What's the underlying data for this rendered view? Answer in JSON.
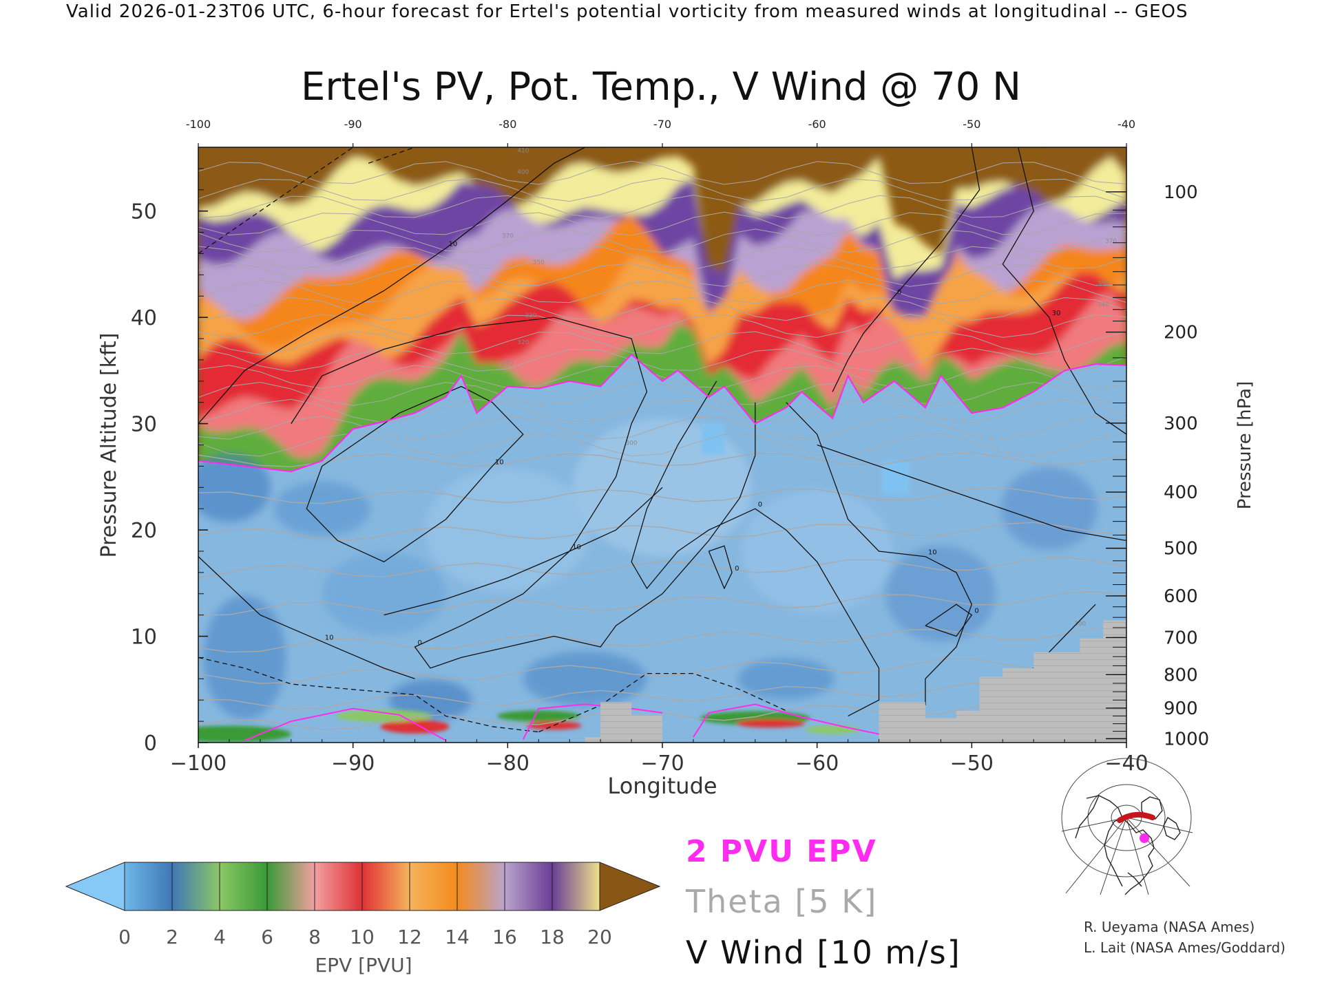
{
  "header": {
    "valid_line": "Valid 2026-01-23T06 UTC, 6-hour forecast for Ertel's potential vorticity from measured winds at longitudinal -- GEOS"
  },
  "chart_data": {
    "type": "heatmap",
    "title": "Ertel's PV, Pot. Temp., V Wind @ 70 N",
    "xlabel": "Longitude",
    "ylabel": "Pressure Altitude [kft]",
    "y2label": "Pressure [hPa]",
    "xlim": [
      -100,
      -40
    ],
    "ylim": [
      0,
      56
    ],
    "x_ticks": [
      -100,
      -90,
      -80,
      -70,
      -60,
      -50,
      -40
    ],
    "x_tick_labels": [
      "−100",
      "−90",
      "−80",
      "−70",
      "−60",
      "−50",
      "−40"
    ],
    "top_tick_labels": [
      "-100",
      "-90",
      "-80",
      "-70",
      "-60",
      "-50",
      "-40"
    ],
    "y_ticks": [
      0,
      10,
      20,
      30,
      40,
      50
    ],
    "y_tick_labels": [
      "0",
      "10",
      "20",
      "30",
      "40",
      "50"
    ],
    "pressure_ticks": [
      {
        "hpa": 1000,
        "label": "1000"
      },
      {
        "hpa": 900,
        "label": "900"
      },
      {
        "hpa": 800,
        "label": "800"
      },
      {
        "hpa": 700,
        "label": "700"
      },
      {
        "hpa": 600,
        "label": "600"
      },
      {
        "hpa": 500,
        "label": "500"
      },
      {
        "hpa": 400,
        "label": "400"
      },
      {
        "hpa": 300,
        "label": "300"
      },
      {
        "hpa": 200,
        "label": "200"
      },
      {
        "hpa": 100,
        "label": "100"
      }
    ],
    "tropopause_kft": [
      [
        -100,
        26.5
      ],
      [
        -97,
        26
      ],
      [
        -94,
        25.5
      ],
      [
        -92,
        26.5
      ],
      [
        -90,
        29.5
      ],
      [
        -88,
        30.2
      ],
      [
        -86,
        31
      ],
      [
        -84,
        32.5
      ],
      [
        -83,
        34.5
      ],
      [
        -82,
        31
      ],
      [
        -80,
        33.5
      ],
      [
        -78,
        33.3
      ],
      [
        -76,
        34
      ],
      [
        -74,
        33.5
      ],
      [
        -72,
        36.5
      ],
      [
        -70,
        34
      ],
      [
        -69,
        35
      ],
      [
        -67,
        32.5
      ],
      [
        -66,
        33.5
      ],
      [
        -64,
        30
      ],
      [
        -62,
        31.5
      ],
      [
        -61,
        33
      ],
      [
        -59,
        30.5
      ],
      [
        -58,
        34.5
      ],
      [
        -57,
        32
      ],
      [
        -55,
        34
      ],
      [
        -53,
        31.5
      ],
      [
        -52,
        34.5
      ],
      [
        -50,
        31
      ],
      [
        -48,
        31.5
      ],
      [
        -46,
        33
      ],
      [
        -44,
        35
      ],
      [
        -42,
        35.6
      ],
      [
        -40,
        35.5
      ]
    ],
    "surface_kft": [
      [
        -100,
        0
      ],
      [
        -75,
        0
      ],
      [
        -75,
        0.5
      ],
      [
        -74,
        0.5
      ],
      [
        -74,
        3.8
      ],
      [
        -72,
        3.8
      ],
      [
        -72,
        2.6
      ],
      [
        -70,
        2.6
      ],
      [
        -70,
        0
      ],
      [
        -56,
        0
      ],
      [
        -56,
        3.8
      ],
      [
        -53,
        3.8
      ],
      [
        -53,
        2.3
      ],
      [
        -51,
        2.3
      ],
      [
        -51,
        3
      ],
      [
        -49.5,
        3
      ],
      [
        -49.5,
        6.2
      ],
      [
        -48,
        6.2
      ],
      [
        -48,
        7
      ],
      [
        -46,
        7
      ],
      [
        -46,
        8.5
      ],
      [
        -43,
        8.5
      ],
      [
        -43,
        9.8
      ],
      [
        -41.5,
        9.8
      ],
      [
        -41.5,
        11.5
      ],
      [
        -40,
        11.5
      ],
      [
        -40,
        0
      ]
    ],
    "v_wind_contours": [
      {
        "label": "10",
        "dashed": false,
        "points": [
          [
            -100,
            30
          ],
          [
            -97,
            35
          ],
          [
            -93,
            38.5
          ],
          [
            -88,
            42.5
          ],
          [
            -84,
            46.5
          ],
          [
            -80,
            51
          ],
          [
            -77,
            54.5
          ],
          [
            -75,
            56
          ]
        ]
      },
      {
        "label": "10",
        "dashed": false,
        "points": [
          [
            -100,
            17.5
          ],
          [
            -96,
            12
          ],
          [
            -92,
            9.5
          ],
          [
            -88,
            7
          ],
          [
            -86,
            6
          ]
        ]
      },
      {
        "label": "0",
        "dashed": false,
        "points": [
          [
            -94,
            30
          ],
          [
            -92,
            34.5
          ],
          [
            -88,
            37
          ],
          [
            -83,
            39
          ],
          [
            -77,
            40
          ],
          [
            -72,
            38
          ],
          [
            -71,
            33
          ],
          [
            -72,
            30
          ],
          [
            -73,
            25
          ],
          [
            -76,
            18
          ],
          [
            -79,
            14
          ],
          [
            -83,
            11
          ],
          [
            -86,
            9
          ],
          [
            -85,
            7
          ],
          [
            -83,
            8
          ],
          [
            -80,
            9
          ],
          [
            -77,
            10
          ],
          [
            -74,
            9
          ],
          [
            -73,
            11
          ],
          [
            -70,
            14
          ],
          [
            -67,
            19
          ],
          [
            -65,
            23
          ],
          [
            -64,
            27
          ],
          [
            -64,
            32
          ]
        ]
      },
      {
        "label": "10",
        "dashed": false,
        "points": [
          [
            -92,
            26
          ],
          [
            -90,
            28
          ],
          [
            -87,
            31
          ],
          [
            -83,
            33.5
          ],
          [
            -81,
            32
          ],
          [
            -79,
            29
          ],
          [
            -81,
            26
          ],
          [
            -84,
            21
          ],
          [
            -88,
            17
          ],
          [
            -91,
            19
          ],
          [
            -93,
            22
          ],
          [
            -92,
            26
          ]
        ]
      },
      {
        "label": "10",
        "dashed": false,
        "points": [
          [
            -88,
            12
          ],
          [
            -84,
            13.5
          ],
          [
            -80,
            15.5
          ],
          [
            -76,
            18
          ],
          [
            -73,
            20
          ],
          [
            -70,
            24
          ]
        ]
      },
      {
        "label": "0",
        "dashed": false,
        "points": [
          [
            -66.5,
            34
          ],
          [
            -69,
            28
          ],
          [
            -71,
            22
          ],
          [
            -72,
            17
          ],
          [
            -71,
            14.5
          ],
          [
            -69,
            18
          ],
          [
            -67,
            20
          ],
          [
            -64,
            22
          ],
          [
            -62,
            20
          ],
          [
            -60,
            17
          ],
          [
            -58,
            12
          ],
          [
            -56,
            7
          ],
          [
            -56,
            4
          ],
          [
            -58,
            2.5
          ]
        ]
      },
      {
        "label": "0",
        "dashed": false,
        "points": [
          [
            -67,
            18
          ],
          [
            -66,
            18.5
          ],
          [
            -65.5,
            16
          ],
          [
            -66,
            14.5
          ],
          [
            -67,
            18
          ]
        ]
      },
      {
        "label": "10",
        "dashed": false,
        "points": [
          [
            -62,
            32
          ],
          [
            -60,
            29
          ],
          [
            -59,
            25
          ],
          [
            -58,
            21
          ],
          [
            -56,
            18
          ],
          [
            -53,
            17.5
          ],
          [
            -51,
            16
          ],
          [
            -50,
            13
          ],
          [
            -51,
            9
          ],
          [
            -53,
            6
          ],
          [
            -53,
            3.5
          ]
        ]
      },
      {
        "label": "0",
        "dashed": false,
        "points": [
          [
            -53,
            11
          ],
          [
            -51,
            13
          ],
          [
            -50,
            12
          ],
          [
            -51,
            10
          ],
          [
            -53,
            11
          ]
        ]
      },
      {
        "label": "0",
        "dashed": false,
        "points": [
          [
            -50,
            56
          ],
          [
            -49.5,
            52
          ],
          [
            -52,
            47
          ],
          [
            -55,
            42
          ],
          [
            -57,
            38.5
          ],
          [
            -58,
            36
          ],
          [
            -59,
            33
          ]
        ]
      },
      {
        "label": "30",
        "dashed": false,
        "points": [
          [
            -47,
            56
          ],
          [
            -46,
            50
          ],
          [
            -48,
            45
          ],
          [
            -45,
            40
          ],
          [
            -44,
            36
          ],
          [
            -42,
            31
          ],
          [
            -40,
            29
          ]
        ]
      },
      {
        "label": "",
        "dashed": false,
        "points": [
          [
            -60,
            28
          ],
          [
            -56,
            26
          ],
          [
            -52,
            24
          ],
          [
            -48,
            22
          ],
          [
            -44,
            20
          ],
          [
            -40,
            19
          ]
        ]
      },
      {
        "label": "",
        "dashed": false,
        "points": [
          [
            -42,
            13
          ],
          [
            -44,
            10
          ],
          [
            -46,
            7
          ],
          [
            -48,
            6
          ]
        ]
      },
      {
        "label": "",
        "dashed": true,
        "points": [
          [
            -100,
            46
          ],
          [
            -96,
            50
          ],
          [
            -92,
            54
          ],
          [
            -90,
            56
          ]
        ]
      },
      {
        "label": "",
        "dashed": true,
        "points": [
          [
            -89,
            54.5
          ],
          [
            -86,
            56
          ]
        ]
      },
      {
        "label": "",
        "dashed": true,
        "points": [
          [
            -100,
            8
          ],
          [
            -97,
            7
          ],
          [
            -94,
            5.5
          ],
          [
            -90,
            5
          ],
          [
            -86,
            4.5
          ],
          [
            -84,
            2.5
          ],
          [
            -81,
            1.5
          ],
          [
            -78,
            1
          ]
        ]
      },
      {
        "label": "",
        "dashed": true,
        "points": [
          [
            -78,
            1
          ],
          [
            -74,
            3.5
          ],
          [
            -71,
            6.5
          ],
          [
            -68,
            6.5
          ],
          [
            -65,
            5
          ],
          [
            -62,
            3
          ]
        ]
      }
    ],
    "theta_isentropes_kft": [
      [
        -100,
        1.5
      ],
      [
        -100,
        3.5
      ],
      [
        -100,
        6
      ],
      [
        -100,
        9
      ],
      [
        -100,
        12.5
      ],
      [
        -100,
        16
      ],
      [
        -100,
        19.5
      ],
      [
        -100,
        23
      ],
      [
        -100,
        26.5
      ]
    ],
    "theta_labels": [
      {
        "text": "300",
        "lon": -72,
        "kft": 28
      },
      {
        "text": "310",
        "lon": -80,
        "kft": 35.5
      },
      {
        "text": "320",
        "lon": -79,
        "kft": 37.5
      },
      {
        "text": "330",
        "lon": -78.5,
        "kft": 40
      },
      {
        "text": "350",
        "lon": -78,
        "kft": 45
      },
      {
        "text": "370",
        "lon": -80,
        "kft": 47.5
      },
      {
        "text": "400",
        "lon": -79,
        "kft": 53.5
      },
      {
        "text": "410",
        "lon": -79,
        "kft": 55.5
      },
      {
        "text": "390",
        "lon": -41,
        "kft": 49
      },
      {
        "text": "370",
        "lon": -41,
        "kft": 47
      },
      {
        "text": "350",
        "lon": -41.5,
        "kft": 43
      },
      {
        "text": "340",
        "lon": -41.5,
        "kft": 41
      },
      {
        "text": "300",
        "lon": -43,
        "kft": 11
      }
    ],
    "colorbar": {
      "label": "EPV [PVU]",
      "tick_labels": [
        "0",
        "2",
        "4",
        "6",
        "8",
        "10",
        "12",
        "14",
        "16",
        "18",
        "20"
      ],
      "colors": [
        "#6eb7e8",
        "#3f78b5",
        "#8cc766",
        "#3a9a36",
        "#f2a0a0",
        "#de3235",
        "#f6b35c",
        "#f38b1d",
        "#b9a3cc",
        "#6a3e96",
        "#eee08a",
        "#7a4a0d"
      ],
      "under_color": "#86c8f6",
      "over_color": "#8a5616"
    },
    "legend": [
      {
        "text": "2 PVU EPV",
        "color": "#ff2cf0"
      },
      {
        "text": "Theta [5 K]",
        "color": "#a9a9a9"
      },
      {
        "text": "V Wind [10 m/s]",
        "color": "#111111"
      }
    ]
  },
  "credits": {
    "line1": "R. Ueyama (NASA Ames)",
    "line2": "L. Lait (NASA Ames/Goddard)"
  },
  "colors": {
    "stratosphere_bands": [
      "#5fae3d",
      "#f07a7d",
      "#e32c34",
      "#f6a346",
      "#f5861d",
      "#b9a2d1",
      "#6e45a3",
      "#f3ec9a",
      "#8c5a12"
    ],
    "troposphere": "#86b7df",
    "pv_contour": "#ff2cf0",
    "theta": "#a9a9a9",
    "wind": "#111111",
    "surface": "#bdbdbd"
  }
}
